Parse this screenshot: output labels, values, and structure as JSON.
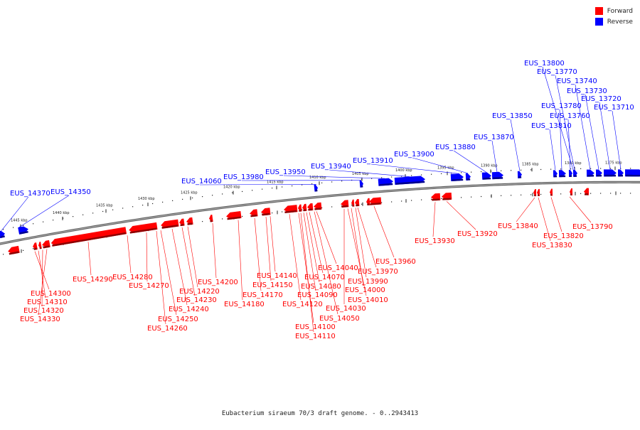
{
  "caption": "Eubacterium siraeum 70/3 draft genome. - 0..2943413",
  "legend": [
    {
      "label": "Forward",
      "color": "#ff0000"
    },
    {
      "label": "Reverse",
      "color": "#0000ff"
    }
  ],
  "colors": {
    "forward": "#ff0000",
    "reverse": "#0000ff",
    "backbone": "#888888"
  },
  "scale_labels": [
    "1445 kbp",
    "1440 kbp",
    "1435 kbp",
    "1430 kbp",
    "1425 kbp",
    "1420 kbp",
    "1415 kbp",
    "1410 kbp",
    "1405 kbp",
    "1400 kbp",
    "1395 kbp",
    "1390 kbp",
    "1385 kbp",
    "1380 kbp",
    "1375 kbp"
  ],
  "reverse_labels": [
    "EUS_14370",
    "EUS_14350",
    "EUS_14060",
    "EUS_13980",
    "EUS_13950",
    "EUS_13940",
    "EUS_13910",
    "EUS_13900",
    "EUS_13880",
    "EUS_13870",
    "EUS_13850",
    "EUS_13810",
    "EUS_13780",
    "EUS_13760",
    "EUS_13800",
    "EUS_13770",
    "EUS_13740",
    "EUS_13730",
    "EUS_13720",
    "EUS_13710"
  ],
  "forward_labels": [
    "EUS_14300",
    "EUS_14310",
    "EUS_14320",
    "EUS_14330",
    "EUS_14290",
    "EUS_14280",
    "EUS_14270",
    "EUS_14260",
    "EUS_14250",
    "EUS_14240",
    "EUS_14230",
    "EUS_14220",
    "EUS_14200",
    "EUS_14180",
    "EUS_14170",
    "EUS_14150",
    "EUS_14140",
    "EUS_14120",
    "EUS_14100",
    "EUS_14110",
    "EUS_14090",
    "EUS_14080",
    "EUS_14070",
    "EUS_14050",
    "EUS_14040",
    "EUS_14030",
    "EUS_14010",
    "EUS_14000",
    "EUS_13990",
    "EUS_13970",
    "EUS_13960",
    "EUS_13930",
    "EUS_13920",
    "EUS_13840",
    "EUS_13830",
    "EUS_13820",
    "EUS_13790"
  ]
}
